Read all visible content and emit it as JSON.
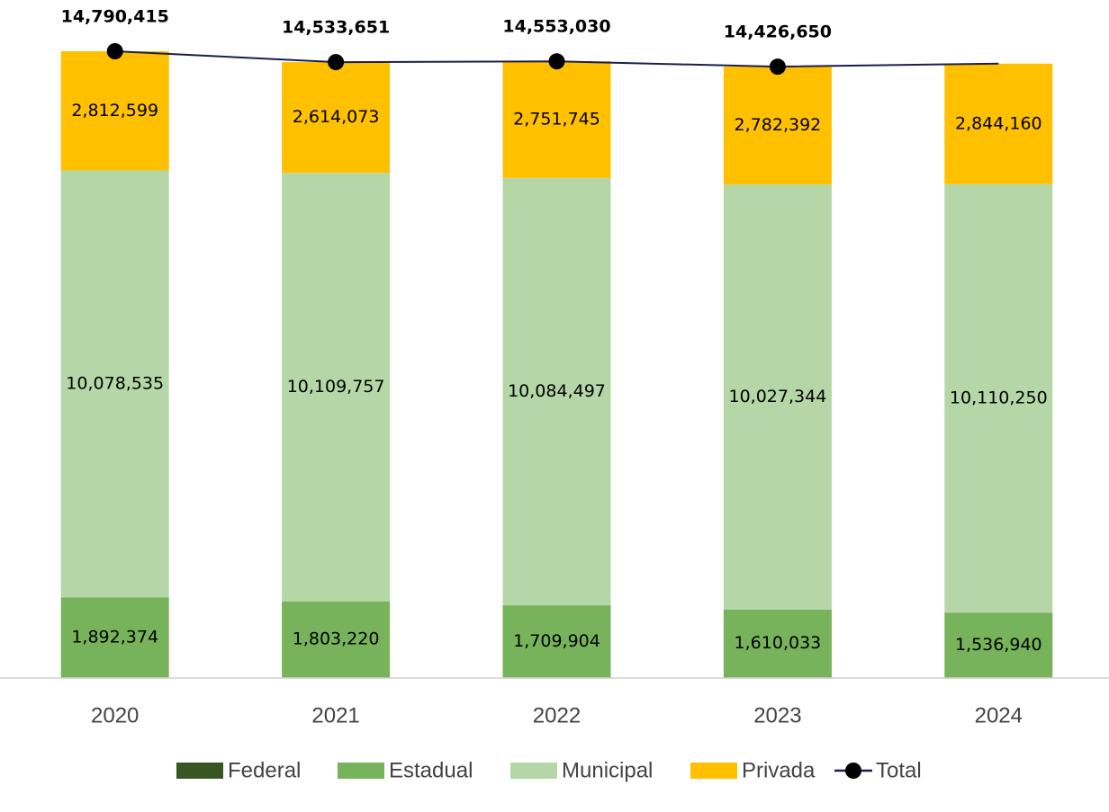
{
  "chart_data": {
    "type": "bar",
    "stacked": true,
    "categories": [
      "2020",
      "2021",
      "2022",
      "2023",
      "2024"
    ],
    "ylim": [
      0,
      16000000
    ],
    "series": [
      {
        "name": "Federal",
        "color": "#375623",
        "values": [
          6907,
          6601,
          6884,
          6881,
          7000
        ]
      },
      {
        "name": "Estadual",
        "color": "#77b35a",
        "values": [
          1892374,
          1803220,
          1709904,
          1610033,
          1536940
        ],
        "value_labels": [
          "1,892,374",
          "1,803,220",
          "1,709,904",
          "1,610,033",
          "1,536,940"
        ]
      },
      {
        "name": "Municipal",
        "color": "#b5d7a8",
        "values": [
          10078535,
          10109757,
          10084497,
          10027344,
          10110250
        ],
        "value_labels": [
          "10,078,535",
          "10,109,757",
          "10,084,497",
          "10,027,344",
          "10,110,250"
        ]
      },
      {
        "name": "Privada",
        "color": "#ffc000",
        "values": [
          2812599,
          2614073,
          2751745,
          2782392,
          2844160
        ],
        "value_labels": [
          "2,812,599",
          "2,614,073",
          "2,751,745",
          "2,782,392",
          "2,844,160"
        ]
      },
      {
        "name": "Total",
        "type": "line",
        "color": "#1b1f4a",
        "marker_color": "#000000",
        "values": [
          14790415,
          14533651,
          14553030,
          14426650,
          14498350
        ],
        "value_labels": [
          "14,790,415",
          "14,533,651",
          "14,553,030",
          "14,426,650",
          null
        ]
      }
    ]
  }
}
